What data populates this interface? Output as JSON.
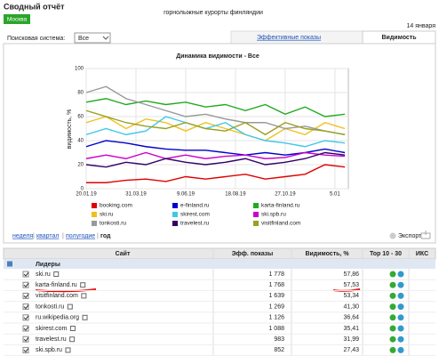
{
  "header": {
    "title": "Сводный отчёт",
    "region": "Москва",
    "subtitle": "горнолыжные курорты финляндии",
    "date": "14 января"
  },
  "filters": {
    "search_label": "Поисковая система:",
    "search_value": "Все"
  },
  "tabs": [
    "Эффективные показы",
    "Видимость"
  ],
  "chart_data": {
    "type": "line",
    "title": "Динамика видимости - Все",
    "y_label": "видимость, %",
    "x": [
      0,
      4,
      8,
      12,
      16,
      20,
      24,
      28,
      32,
      36,
      40,
      44,
      48,
      52
    ],
    "xlim": [
      0,
      52.7
    ],
    "xticks": [
      {
        "value": 0,
        "label": "20.01.19"
      },
      {
        "value": 10,
        "label": "31.03.19"
      },
      {
        "value": 20,
        "label": "9.06.19"
      },
      {
        "value": 30,
        "label": "18.08.19"
      },
      {
        "value": 40,
        "label": "27.10.19"
      },
      {
        "value": 50,
        "label": "5.01"
      }
    ],
    "ylim": [
      0,
      100
    ],
    "yticks": [
      0,
      20,
      40,
      60,
      80,
      100
    ],
    "grid": true,
    "series": [
      {
        "name": "booking.com",
        "color": "#e00000",
        "values": [
          5,
          5,
          7,
          8,
          6,
          10,
          8,
          10,
          12,
          8,
          10,
          12,
          20,
          18
        ]
      },
      {
        "name": "e-finland.ru",
        "color": "#0000cc",
        "values": [
          35,
          40,
          38,
          35,
          33,
          32,
          32,
          30,
          28,
          30,
          28,
          30,
          33,
          30
        ]
      },
      {
        "name": "karta-finland.ru",
        "color": "#22aa22",
        "values": [
          72,
          75,
          70,
          73,
          70,
          72,
          68,
          70,
          65,
          70,
          62,
          68,
          60,
          62
        ]
      },
      {
        "name": "ski.ru",
        "color": "#f0c020",
        "values": [
          55,
          60,
          50,
          58,
          55,
          48,
          55,
          50,
          45,
          40,
          50,
          45,
          55,
          50
        ]
      },
      {
        "name": "skirest.com",
        "color": "#40c8e8",
        "values": [
          45,
          50,
          45,
          48,
          60,
          55,
          50,
          55,
          45,
          40,
          38,
          35,
          40,
          38
        ]
      },
      {
        "name": "ski.spb.ru",
        "color": "#cc00cc",
        "values": [
          25,
          28,
          25,
          30,
          25,
          28,
          25,
          27,
          28,
          25,
          26,
          30,
          28,
          27
        ]
      },
      {
        "name": "tonkosti.ru",
        "color": "#999999",
        "values": [
          80,
          85,
          75,
          70,
          65,
          60,
          62,
          58,
          55,
          55,
          50,
          52,
          48,
          45
        ]
      },
      {
        "name": "travelest.ru",
        "color": "#330066",
        "values": [
          20,
          18,
          22,
          20,
          25,
          22,
          20,
          22,
          25,
          20,
          22,
          25,
          30,
          28
        ]
      },
      {
        "name": "visitfinland.com",
        "color": "#9aa020",
        "values": [
          65,
          60,
          55,
          52,
          50,
          55,
          50,
          48,
          55,
          45,
          55,
          50,
          48,
          45
        ]
      }
    ]
  },
  "periods": [
    "неделя",
    "квартал",
    "полугодие",
    "год"
  ],
  "export": "Экспорт",
  "table": {
    "columns": [
      "Сайт",
      "Эфф. показы",
      "Видимость, %",
      "Top 10 - 30",
      "ИКС"
    ],
    "group": "Лидеры",
    "rows": [
      [
        "ski.ru",
        "1 778",
        "57,86"
      ],
      [
        "karta-finland.ru",
        "1 768",
        "57,53"
      ],
      [
        "visitfinland.com",
        "1 639",
        "53,34"
      ],
      [
        "tonkosti.ru",
        "1 269",
        "41,30"
      ],
      [
        "ru.wikipedia.org",
        "1 126",
        "36,64"
      ],
      [
        "skirest.com",
        "1 088",
        "35,41"
      ],
      [
        "travelest.ru",
        "983",
        "31,99"
      ],
      [
        "ski.spb.ru",
        "852",
        "27,43"
      ]
    ]
  }
}
